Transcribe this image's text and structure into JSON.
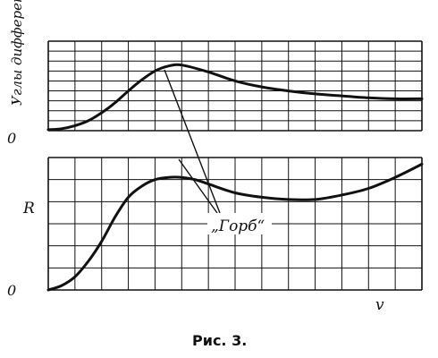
{
  "chart_data": [
    {
      "type": "line",
      "ylabel": "Углы дифферента",
      "origin_label": "0",
      "grid": true,
      "x_cells": 14,
      "y_cells": 9,
      "x": [
        0,
        0.5,
        1,
        1.5,
        2,
        2.5,
        3,
        3.5,
        4,
        4.5,
        5,
        6,
        7,
        8,
        9,
        10,
        11,
        12,
        13,
        14
      ],
      "values": [
        0.1,
        0.2,
        0.5,
        1.0,
        1.8,
        2.8,
        4.0,
        5.1,
        6.0,
        6.5,
        6.6,
        5.9,
        5.0,
        4.4,
        4.0,
        3.7,
        3.5,
        3.3,
        3.2,
        3.2
      ]
    },
    {
      "type": "line",
      "ylabel": "R",
      "xlabel": "v",
      "origin_label": "0",
      "grid": true,
      "x_cells": 14,
      "y_cells": 6,
      "x": [
        0,
        0.5,
        1,
        1.5,
        2,
        2.5,
        3,
        3.5,
        4,
        4.5,
        5,
        5.5,
        6,
        7,
        8,
        9,
        10,
        11,
        12,
        13,
        14
      ],
      "values": [
        0.0,
        0.2,
        0.6,
        1.3,
        2.2,
        3.3,
        4.2,
        4.7,
        5.0,
        5.1,
        5.1,
        5.0,
        4.8,
        4.4,
        4.2,
        4.1,
        4.1,
        4.3,
        4.6,
        5.1,
        5.7
      ]
    }
  ],
  "annotation": "„Горб“",
  "caption": "Рис. 3."
}
